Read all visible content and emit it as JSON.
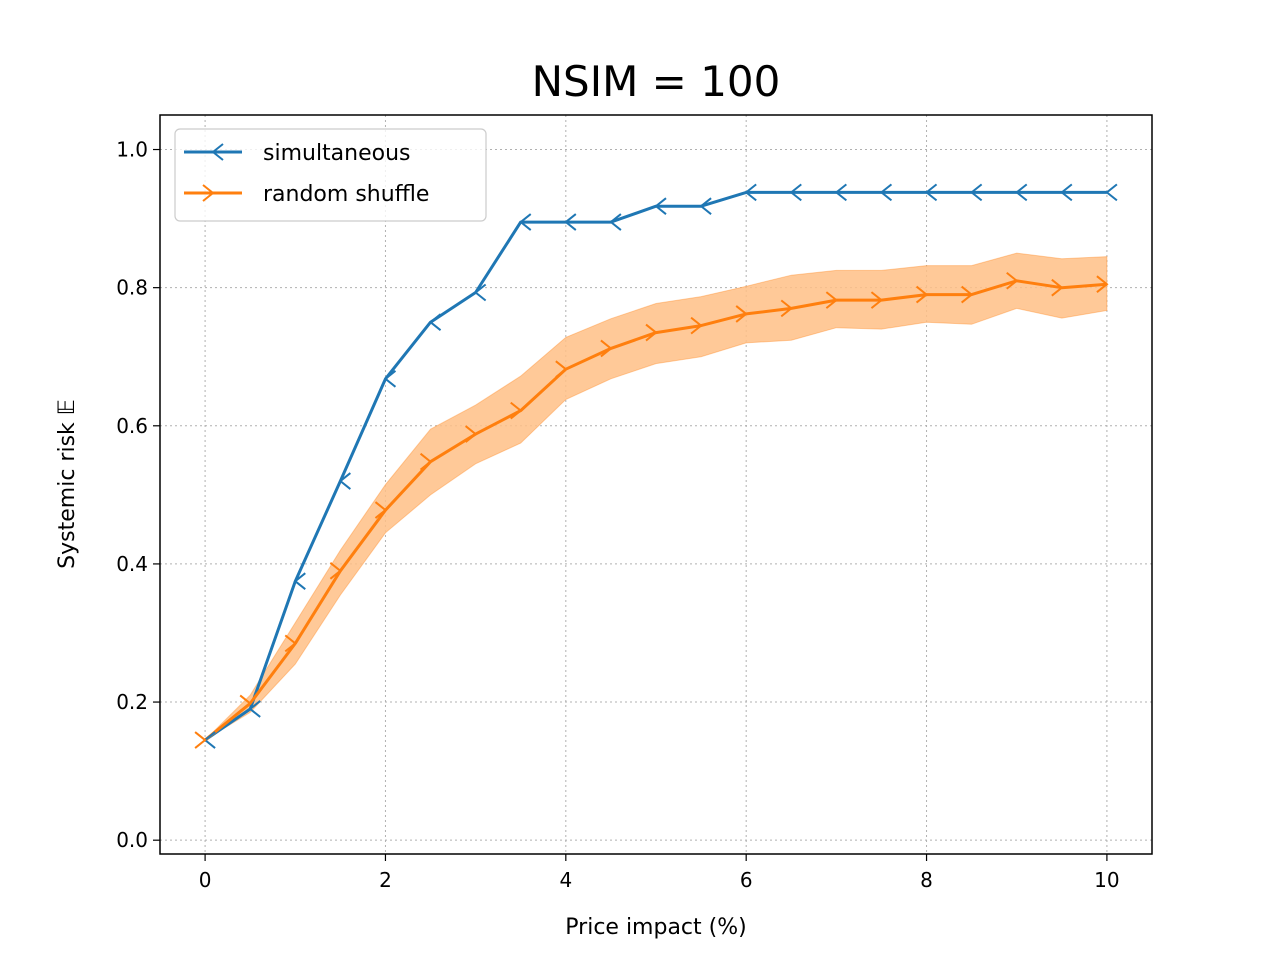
{
  "chart_data": {
    "type": "line",
    "title": "NSIM = 100",
    "xlabel": "Price impact (%)",
    "ylabel": "Systemic risk 𝔼",
    "xlim": [
      -0.5,
      10.5
    ],
    "ylim": [
      -0.02,
      1.05
    ],
    "xticks": [
      0,
      2,
      4,
      6,
      8,
      10
    ],
    "xtick_labels": [
      "0",
      "2",
      "4",
      "6",
      "8",
      "10"
    ],
    "yticks": [
      0.0,
      0.2,
      0.4,
      0.6,
      0.8,
      1.0
    ],
    "ytick_labels": [
      "0.0",
      "0.2",
      "0.4",
      "0.6",
      "0.8",
      "1.0"
    ],
    "grid": true,
    "legend_position": "upper-left",
    "x": [
      0,
      0.5,
      1,
      1.5,
      2,
      2.5,
      3,
      3.5,
      4,
      4.5,
      5,
      5.5,
      6,
      6.5,
      7,
      7.5,
      8,
      8.5,
      9,
      9.5,
      10
    ],
    "series": [
      {
        "name": "simultaneous",
        "color": "#1f77b4",
        "marker": "tri-left",
        "values": [
          0.145,
          0.19,
          0.375,
          0.52,
          0.668,
          0.75,
          0.793,
          0.895,
          0.895,
          0.895,
          0.918,
          0.918,
          0.938,
          0.938,
          0.938,
          0.938,
          0.938,
          0.938,
          0.938,
          0.938,
          0.938
        ]
      },
      {
        "name": "random shuffle",
        "color": "#ff7f0e",
        "marker": "tri-right",
        "values": [
          0.145,
          0.198,
          0.285,
          0.39,
          0.478,
          0.548,
          0.588,
          0.622,
          0.682,
          0.712,
          0.735,
          0.745,
          0.762,
          0.77,
          0.782,
          0.782,
          0.79,
          0.79,
          0.81,
          0.8,
          0.805
        ],
        "band_lower": [
          0.145,
          0.185,
          0.255,
          0.355,
          0.445,
          0.5,
          0.545,
          0.575,
          0.638,
          0.668,
          0.69,
          0.7,
          0.72,
          0.724,
          0.742,
          0.74,
          0.75,
          0.747,
          0.77,
          0.756,
          0.767
        ],
        "band_upper": [
          0.145,
          0.21,
          0.315,
          0.42,
          0.515,
          0.595,
          0.63,
          0.672,
          0.728,
          0.755,
          0.777,
          0.787,
          0.802,
          0.818,
          0.825,
          0.825,
          0.832,
          0.832,
          0.85,
          0.842,
          0.845
        ],
        "band_color": "#ffbf86"
      }
    ]
  }
}
